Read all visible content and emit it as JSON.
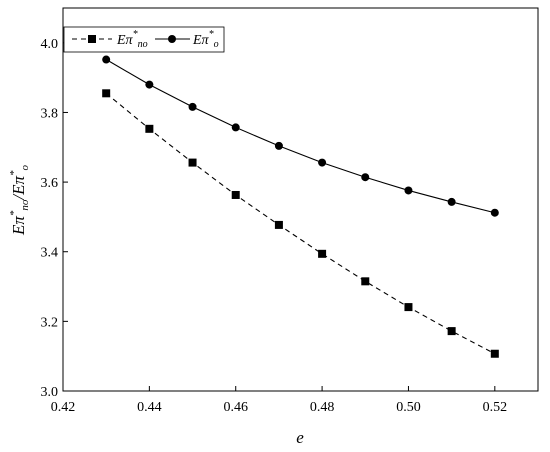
{
  "chart_data": {
    "type": "line",
    "title": "",
    "xlabel": "e",
    "ylabel": "Eπ*no/Eπ*o",
    "xlim": [
      0.42,
      0.53
    ],
    "ylim": [
      3.0,
      4.1
    ],
    "x_ticks": [
      "0.42",
      "0.44",
      "0.46",
      "0.48",
      "0.50",
      "0.52"
    ],
    "y_ticks": [
      "3.0",
      "3.2",
      "3.4",
      "3.6",
      "3.8",
      "4.0"
    ],
    "grid": false,
    "legend_position": "top-left",
    "x": [
      0.43,
      0.44,
      0.45,
      0.46,
      0.47,
      0.48,
      0.49,
      0.5,
      0.51,
      0.52
    ],
    "series": [
      {
        "name": "Eπ*no",
        "marker": "square",
        "line_style": "dashed",
        "color": "#000000",
        "values": [
          3.855,
          3.753,
          3.656,
          3.563,
          3.477,
          3.394,
          3.315,
          3.241,
          3.172,
          3.107
        ]
      },
      {
        "name": "Eπ*o",
        "marker": "circle",
        "line_style": "solid",
        "color": "#000000",
        "values": [
          3.952,
          3.88,
          3.816,
          3.757,
          3.704,
          3.656,
          3.614,
          3.576,
          3.543,
          3.512
        ]
      }
    ]
  }
}
